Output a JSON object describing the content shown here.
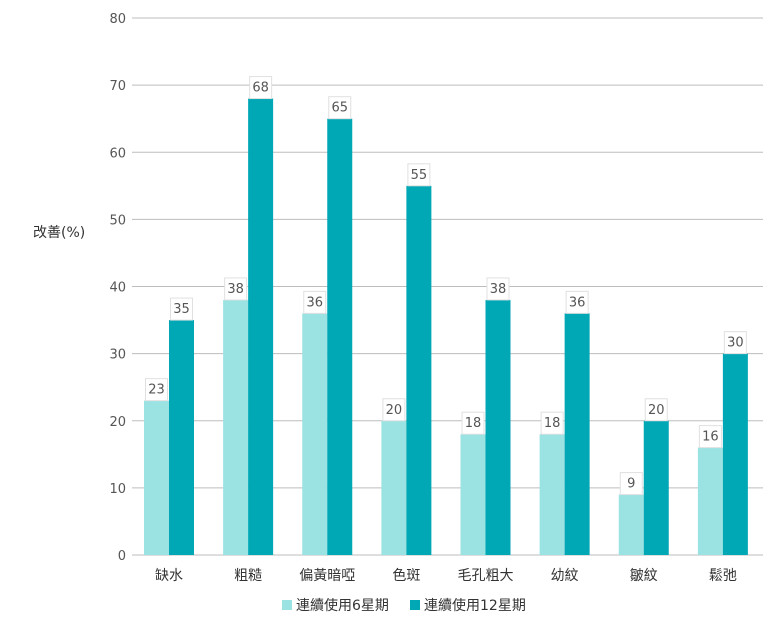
{
  "chart_data": {
    "type": "bar",
    "ylabel": "改善(%)",
    "ylim": [
      0,
      80
    ],
    "yticks": [
      0,
      10,
      20,
      30,
      40,
      50,
      60,
      70,
      80
    ],
    "grid": true,
    "legend_position": "bottom",
    "categories": [
      "缺水",
      "粗糙",
      "偏黃暗啞",
      "色斑",
      "毛孔粗大",
      "幼紋",
      "皺紋",
      "鬆弛"
    ],
    "series": [
      {
        "name": "連續使用6星期",
        "color": "#9ae3e2",
        "values": [
          23,
          38,
          36,
          20,
          18,
          18,
          9,
          16
        ]
      },
      {
        "name": "連續使用12星期",
        "color": "#00a7b5",
        "values": [
          35,
          68,
          65,
          55,
          38,
          36,
          20,
          30
        ]
      }
    ]
  }
}
